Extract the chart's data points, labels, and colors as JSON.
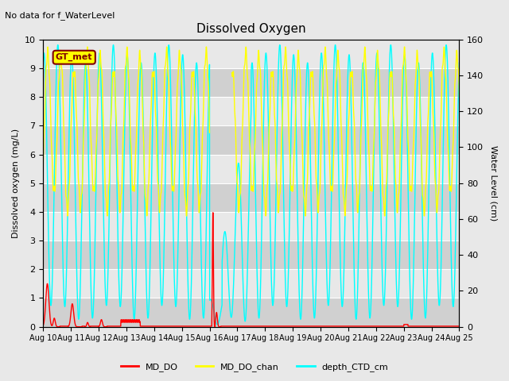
{
  "title": "Dissolved Oxygen",
  "title_note": "No data for f_WaterLevel",
  "ylabel_left": "Dissolved oxygen (mg/L)",
  "ylabel_right": "Water Level (cm)",
  "ylim_left": [
    0.0,
    10.0
  ],
  "ylim_right": [
    0,
    160
  ],
  "yticks_left": [
    0.0,
    1.0,
    2.0,
    3.0,
    4.0,
    5.0,
    6.0,
    7.0,
    8.0,
    9.0,
    10.0
  ],
  "yticks_right": [
    0,
    20,
    40,
    60,
    80,
    100,
    120,
    140,
    160
  ],
  "xticklabels": [
    "Aug 10",
    "Aug 11",
    "Aug 12",
    "Aug 13",
    "Aug 14",
    "Aug 15",
    "Aug 16",
    "Aug 17",
    "Aug 18",
    "Aug 19",
    "Aug 20",
    "Aug 21",
    "Aug 22",
    "Aug 23",
    "Aug 24",
    "Aug 25"
  ],
  "legend_labels": [
    "MD_DO",
    "MD_DO_chan",
    "depth_CTD_cm"
  ],
  "legend_colors": [
    "#ff0000",
    "#ffff00",
    "#00ffff"
  ],
  "color_MD_DO": "#ff0000",
  "color_MD_DO_chan": "#ffff00",
  "color_depth_CTD_cm": "#00ffff",
  "annotation_box": "GT_met",
  "annotation_box_color": "#ffff00",
  "annotation_box_edge_color": "#800000",
  "annotation_text_color": "#800000",
  "bg_color": "#e8e8e8",
  "plot_bg_color": "#e8e8e8",
  "band_color_dark": "#d0d0d0",
  "band_color_light": "#e8e8e8",
  "grid_color": "#ffffff",
  "linewidth_DO": 1.0,
  "linewidth_chan": 1.0,
  "linewidth_depth": 1.0
}
